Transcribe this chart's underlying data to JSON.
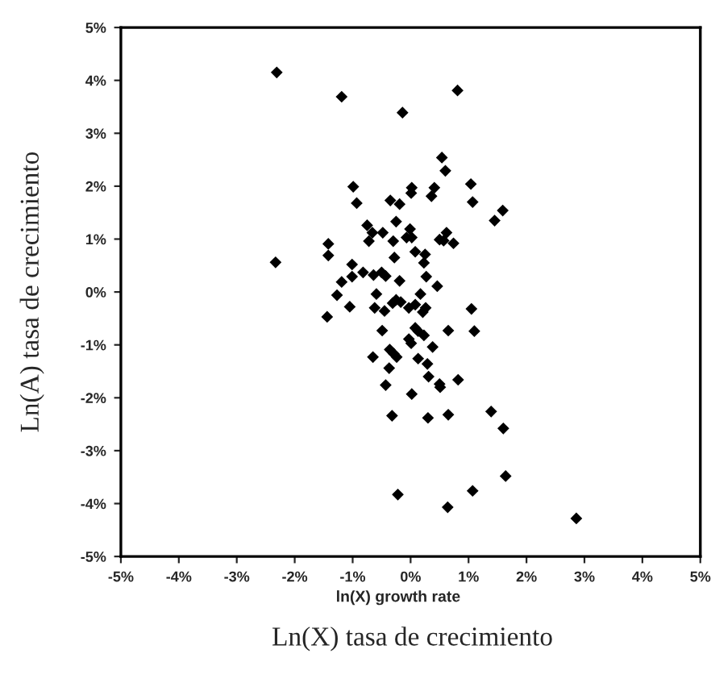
{
  "chart_data": {
    "type": "scatter",
    "xlabel": "Ln(X) tasa de crecimiento",
    "ylabel": "Ln(A) tasa de crecimiento",
    "annotations": [
      "ln(X) growth rate"
    ],
    "marker": "diamond",
    "grid": false,
    "legend": false,
    "xlim": [
      -5,
      5
    ],
    "ylim": [
      -5,
      5
    ],
    "xticks": [
      {
        "value": -5,
        "label": "-5%"
      },
      {
        "value": -4,
        "label": "-4%"
      },
      {
        "value": -3,
        "label": "-3%"
      },
      {
        "value": -2,
        "label": "-2%"
      },
      {
        "value": -1,
        "label": "-1%"
      },
      {
        "value": 0,
        "label": "0%"
      },
      {
        "value": 1,
        "label": "1%"
      },
      {
        "value": 2,
        "label": "2%"
      },
      {
        "value": 3,
        "label": "3%"
      },
      {
        "value": 4,
        "label": "4%"
      },
      {
        "value": 5,
        "label": "5%"
      }
    ],
    "yticks": [
      {
        "value": -5,
        "label": "-5%"
      },
      {
        "value": -4,
        "label": "-4%"
      },
      {
        "value": -3,
        "label": "-3%"
      },
      {
        "value": -2,
        "label": "-2%"
      },
      {
        "value": -1,
        "label": "-1%"
      },
      {
        "value": 0,
        "label": "0%"
      },
      {
        "value": 1,
        "label": "1%"
      },
      {
        "value": 2,
        "label": "2%"
      },
      {
        "value": 3,
        "label": "3%"
      },
      {
        "value": 4,
        "label": "4%"
      },
      {
        "value": 5,
        "label": "5%"
      }
    ],
    "series": [
      {
        "color": "#000000",
        "x": [
          -2.31,
          -1.19,
          -0.14,
          -0.99,
          -0.93,
          -0.35,
          -0.19,
          -0.25,
          -0.75,
          -0.66,
          -0.72,
          -0.48,
          -0.3,
          -1.42,
          -1.42,
          -0.28,
          -2.33,
          -1.01,
          -1.19,
          -0.82,
          -0.64,
          -0.5,
          -0.43,
          -0.19,
          -1.01,
          -0.59,
          -1.27,
          0.81,
          0.54,
          0.6,
          1.04,
          1.07,
          1.59,
          1.45,
          0.02,
          0.01,
          0.41,
          0.36,
          -0.01,
          -0.07,
          0.02,
          0.5,
          0.62,
          0.57,
          0.74,
          0.08,
          0.25,
          0.23,
          0.27,
          0.46,
          0.17,
          -1.05,
          -1.44,
          -0.62,
          -0.45,
          -0.31,
          -0.25,
          -0.17,
          -0.49,
          -0.36,
          -0.29,
          -0.24,
          -0.65,
          -0.37,
          -0.43,
          -0.32,
          -0.22,
          -0.03,
          0.08,
          0.21,
          0.26,
          1.05,
          1.1,
          0.65,
          0.08,
          0.13,
          0.23,
          -0.03,
          0.01,
          0.38,
          0.13,
          0.29,
          0.31,
          0.82,
          0.5,
          0.51,
          0.02,
          0.3,
          0.65,
          1.39,
          1.6,
          1.64,
          1.07,
          0.64,
          2.86
        ],
        "values": [
          4.15,
          3.69,
          3.39,
          1.99,
          1.68,
          1.73,
          1.66,
          1.33,
          1.26,
          1.12,
          0.96,
          1.12,
          0.96,
          0.91,
          0.69,
          0.65,
          0.56,
          0.52,
          0.19,
          0.37,
          0.32,
          0.37,
          0.3,
          0.21,
          0.29,
          -0.04,
          -0.06,
          3.81,
          2.54,
          2.29,
          2.04,
          1.7,
          1.54,
          1.35,
          1.97,
          1.87,
          1.97,
          1.81,
          1.19,
          1.03,
          1.03,
          0.99,
          1.12,
          0.97,
          0.92,
          0.76,
          0.71,
          0.55,
          0.29,
          0.11,
          -0.04,
          -0.28,
          -0.47,
          -0.3,
          -0.36,
          -0.21,
          -0.15,
          -0.19,
          -0.73,
          -1.09,
          -1.17,
          -1.23,
          -1.23,
          -1.44,
          -1.76,
          -2.34,
          -3.83,
          -0.3,
          -0.24,
          -0.38,
          -0.3,
          -0.32,
          -0.74,
          -0.73,
          -0.68,
          -0.74,
          -0.82,
          -0.89,
          -0.97,
          -1.04,
          -1.26,
          -1.36,
          -1.6,
          -1.66,
          -1.74,
          -1.8,
          -1.93,
          -2.38,
          -2.32,
          -2.26,
          -2.58,
          -3.48,
          -3.76,
          -4.07,
          -4.28
        ]
      }
    ]
  }
}
